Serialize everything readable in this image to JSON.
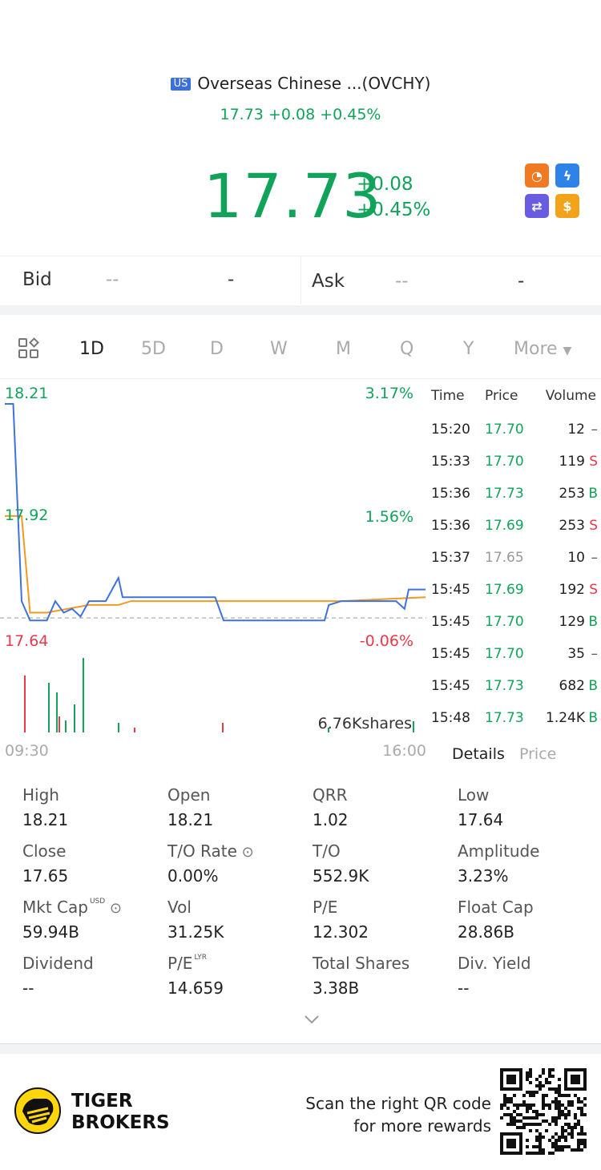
{
  "header": {
    "market_badge": "US",
    "title": "Overseas Chinese ...(OVCHY)",
    "subtitle": "17.73 +0.08 +0.45%"
  },
  "quote": {
    "price": "17.73",
    "change": "+0.08",
    "change_pct": "+0.45%",
    "up_color": "#12a35a",
    "down_color": "#e83a4a"
  },
  "app_icons": [
    "gauge-icon",
    "lightning-icon",
    "swap-icon",
    "dollar-icon"
  ],
  "bid_ask": {
    "bid_label": "Bid",
    "bid_price": "--",
    "bid_size": "-",
    "ask_label": "Ask",
    "ask_price": "--",
    "ask_size": "-"
  },
  "period_tabs": {
    "items": [
      "1D",
      "5D",
      "D",
      "W",
      "M",
      "Q",
      "Y"
    ],
    "active": "1D",
    "more_label": "More"
  },
  "chart_data": {
    "type": "line",
    "y_labels": {
      "top": "18.21",
      "mid": "17.92",
      "bottom": "17.64"
    },
    "pct_labels": {
      "top": "3.17%",
      "mid": "1.56%",
      "bottom": "-0.06%"
    },
    "prev_close": 17.65,
    "ylim": [
      17.64,
      18.21
    ],
    "x_start_label": "09:30",
    "x_end_label": "16:00",
    "volume_label": "6.76Kshares",
    "series": [
      {
        "color": "#3f72e0",
        "x": [
          0,
          0.02,
          0.04,
          0.06,
          0.1,
          0.12,
          0.14,
          0.16,
          0.18,
          0.2,
          0.24,
          0.27,
          0.28,
          0.32,
          0.5,
          0.52,
          0.76,
          0.77,
          0.8,
          0.93,
          0.95,
          0.96,
          1
        ],
        "values": [
          18.21,
          18.21,
          17.7,
          17.65,
          17.65,
          17.7,
          17.67,
          17.68,
          17.66,
          17.7,
          17.7,
          17.76,
          17.71,
          17.71,
          17.71,
          17.65,
          17.65,
          17.69,
          17.7,
          17.7,
          17.68,
          17.73,
          17.73
        ]
      },
      {
        "color": "#f29a1e",
        "x": [
          0,
          0.04,
          0.06,
          0.1,
          0.2,
          0.27,
          0.3,
          0.6,
          0.8,
          1
        ],
        "values": [
          17.92,
          17.92,
          17.67,
          17.67,
          17.69,
          17.69,
          17.7,
          17.7,
          17.7,
          17.71
        ]
      }
    ]
  },
  "ticks": {
    "headers": {
      "time": "Time",
      "price": "Price",
      "volume": "Volume"
    },
    "rows": [
      {
        "time": "15:20",
        "price": "17.70",
        "volume": "12",
        "side": "-"
      },
      {
        "time": "15:33",
        "price": "17.70",
        "volume": "119",
        "side": "S"
      },
      {
        "time": "15:36",
        "price": "17.73",
        "volume": "253",
        "side": "B"
      },
      {
        "time": "15:36",
        "price": "17.69",
        "volume": "253",
        "side": "S"
      },
      {
        "time": "15:37",
        "price": "17.65",
        "volume": "10",
        "side": "-"
      },
      {
        "time": "15:45",
        "price": "17.69",
        "volume": "192",
        "side": "S"
      },
      {
        "time": "15:45",
        "price": "17.70",
        "volume": "129",
        "side": "B"
      },
      {
        "time": "15:45",
        "price": "17.70",
        "volume": "35",
        "side": "-"
      },
      {
        "time": "15:45",
        "price": "17.73",
        "volume": "682",
        "side": "B"
      },
      {
        "time": "15:48",
        "price": "17.73",
        "volume": "1.24K",
        "side": "B"
      }
    ]
  },
  "detail_tabs": {
    "details": "Details",
    "price": "Price"
  },
  "stats": [
    {
      "label": "High",
      "value": "18.21"
    },
    {
      "label": "Open",
      "value": "18.21"
    },
    {
      "label": "QRR",
      "value": "1.02"
    },
    {
      "label": "Low",
      "value": "17.64"
    },
    {
      "label": "Close",
      "value": "17.65"
    },
    {
      "label": "T/O Rate",
      "value": "0.00%",
      "info": true
    },
    {
      "label": "T/O",
      "value": "552.9K"
    },
    {
      "label": "Amplitude",
      "value": "3.23%"
    },
    {
      "label": "Mkt Cap",
      "value": "59.94B",
      "sup": "USD",
      "info": true
    },
    {
      "label": "Vol",
      "value": "31.25K"
    },
    {
      "label": "P/E",
      "value": "12.302"
    },
    {
      "label": "Float Cap",
      "value": "28.86B"
    },
    {
      "label": "Dividend",
      "value": "--"
    },
    {
      "label": "P/E",
      "value": "14.659",
      "sup": "LYR"
    },
    {
      "label": "Total Shares",
      "value": "3.38B"
    },
    {
      "label": "Div. Yield",
      "value": "--"
    }
  ],
  "footer": {
    "brand_line1": "TIGER",
    "brand_line2": "BROKERS",
    "promo_line1": "Scan the right QR code",
    "promo_line2": "for more rewards"
  }
}
